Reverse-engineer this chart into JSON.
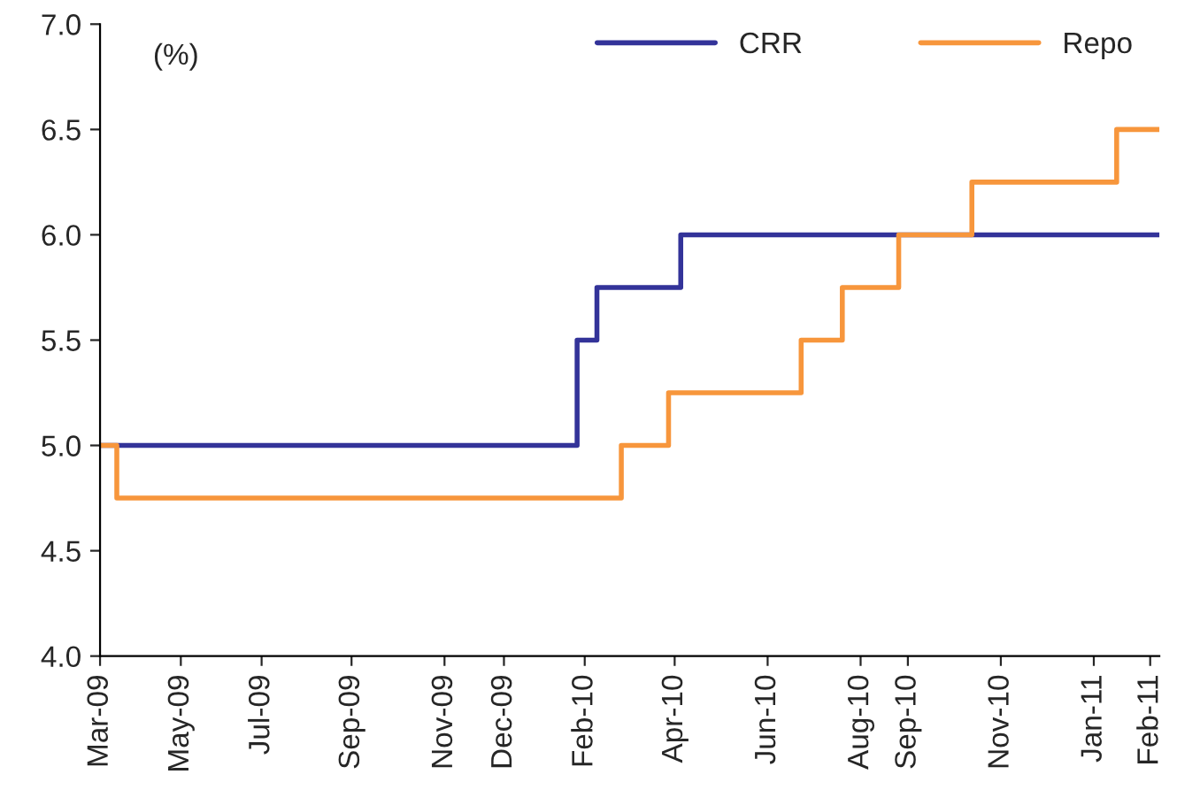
{
  "chart_data": {
    "type": "step",
    "ylabel": "(%)",
    "series": [
      {
        "name": "CRR",
        "color": "#333399",
        "x": [
          "2009-03-20",
          "2010-01-27",
          "2010-02-09",
          "2010-04-05",
          "2011-02-13"
        ],
        "values": [
          5.0,
          5.5,
          5.75,
          6.0,
          6.0
        ]
      },
      {
        "name": "Repo",
        "color": "#f7963c",
        "x": [
          "2009-03-20",
          "2009-03-31",
          "2010-02-25",
          "2010-03-28",
          "2010-06-23",
          "2010-07-20",
          "2010-08-26",
          "2010-10-13",
          "2011-01-16",
          "2011-02-13"
        ],
        "values": [
          5.0,
          4.75,
          5.0,
          5.25,
          5.5,
          5.75,
          6.0,
          6.25,
          6.5,
          6.5
        ]
      }
    ],
    "xlim": [
      "2009-03-20",
      "2011-02-13"
    ],
    "xticks": [
      {
        "value": "2009-03-20",
        "label": "Mar-09"
      },
      {
        "value": "2009-05-12",
        "label": "May-09"
      },
      {
        "value": "2009-07-04",
        "label": "Jul-09"
      },
      {
        "value": "2009-09-01",
        "label": "Sep-09"
      },
      {
        "value": "2009-11-01",
        "label": "Nov-09"
      },
      {
        "value": "2009-12-10",
        "label": "Dec-09"
      },
      {
        "value": "2010-02-01",
        "label": "Feb-10"
      },
      {
        "value": "2010-04-01",
        "label": "Apr-10"
      },
      {
        "value": "2010-06-01",
        "label": "Jun-10"
      },
      {
        "value": "2010-08-01",
        "label": "Aug-10"
      },
      {
        "value": "2010-09-01",
        "label": "Sep-10"
      },
      {
        "value": "2010-11-01",
        "label": "Nov-10"
      },
      {
        "value": "2011-01-01",
        "label": "Jan-11"
      },
      {
        "value": "2011-02-07",
        "label": "Feb-11"
      }
    ],
    "ylim": [
      4.0,
      7.0
    ],
    "yticks": [
      {
        "value": 4.0,
        "label": "4.0"
      },
      {
        "value": 4.5,
        "label": "4.5"
      },
      {
        "value": 5.0,
        "label": "5.0"
      },
      {
        "value": 5.5,
        "label": "5.5"
      },
      {
        "value": 6.0,
        "label": "6.0"
      },
      {
        "value": 6.5,
        "label": "6.5"
      },
      {
        "value": 7.0,
        "label": "7.0"
      }
    ],
    "grid": false,
    "legend": "top right",
    "line_style": "solid",
    "marker": "none"
  }
}
